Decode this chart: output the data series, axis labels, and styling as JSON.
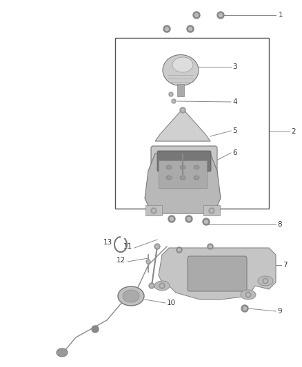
{
  "bg_color": "#ffffff",
  "line_color": "#888888",
  "label_color": "#333333",
  "fig_width": 4.38,
  "fig_height": 5.33,
  "dpi": 100,
  "label_fontsize": 7.5
}
